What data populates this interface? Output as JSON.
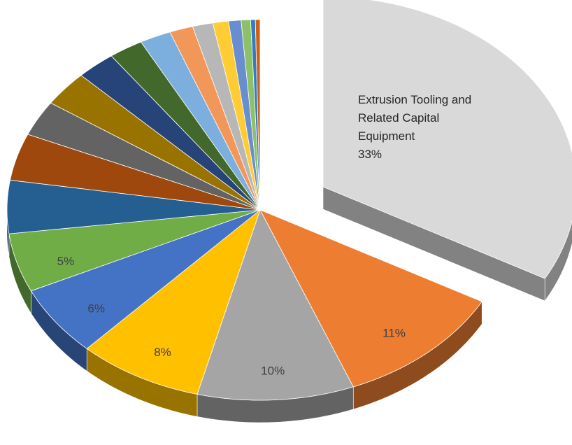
{
  "chart_data": {
    "type": "pie",
    "categories": [
      "Extrusion Tooling and Related Capital Equipment",
      null,
      null,
      null,
      null,
      null,
      null,
      null,
      null,
      null,
      null,
      null,
      null,
      null,
      null,
      null,
      null,
      null,
      null,
      null
    ],
    "values": [
      33,
      11,
      10,
      8,
      6,
      5,
      4.5,
      4,
      3,
      3,
      2.5,
      2.2,
      2,
      1.5,
      1.3,
      1,
      0.8,
      0.6,
      0.3,
      0.3
    ],
    "value_labels": [
      "33%",
      "11%",
      "10%",
      "8%",
      "6%",
      "5%",
      null,
      null,
      null,
      null,
      null,
      null,
      null,
      null,
      null,
      null,
      null,
      null,
      null,
      null
    ],
    "colors": [
      "#d9d9d9",
      "#ed7d31",
      "#a5a5a5",
      "#ffc000",
      "#4472c4",
      "#70ad47",
      "#255e91",
      "#9e480e",
      "#636363",
      "#997300",
      "#264478",
      "#43682b",
      "#7cafdd",
      "#f1975a",
      "#b7b7b7",
      "#ffcd33",
      "#698ed0",
      "#8cc168",
      "#327dc2",
      "#d26012"
    ]
  }
}
